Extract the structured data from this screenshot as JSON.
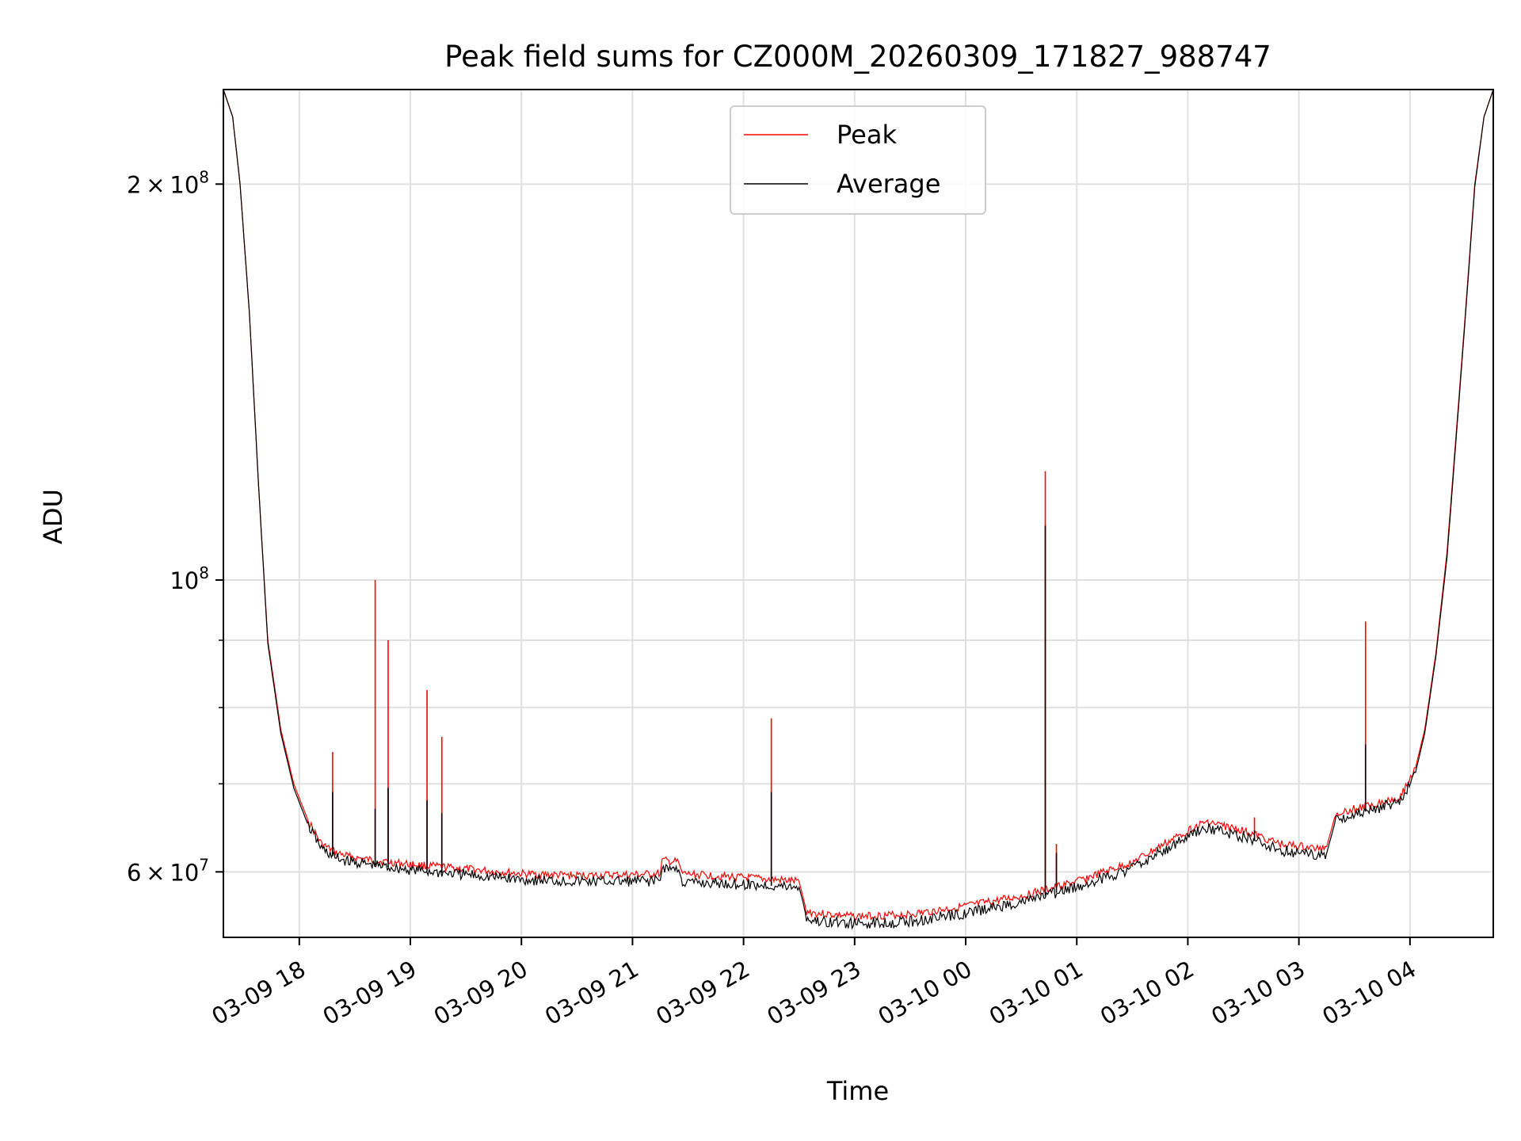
{
  "chart_data": {
    "type": "line",
    "title": "Peak field sums for CZ000M_20260309_171827_988747",
    "xlabel": "Time",
    "ylabel": "ADU",
    "yscale": "log",
    "ylim": [
      53500000,
      236000000
    ],
    "xlim": [
      "2026-03-09 17:19",
      "2026-03-10 04:45"
    ],
    "grid": true,
    "legend_position": "upper center",
    "x_ticks": [
      "2026-03-09 18:00",
      "2026-03-09 19:00",
      "2026-03-09 20:00",
      "2026-03-09 21:00",
      "2026-03-09 22:00",
      "2026-03-09 23:00",
      "2026-03-10 00:00",
      "2026-03-10 01:00",
      "2026-03-10 02:00",
      "2026-03-10 03:00",
      "2026-03-10 04:00"
    ],
    "x_tick_labels": [
      "03-09 18",
      "03-09 19",
      "03-09 20",
      "03-09 21",
      "03-09 22",
      "03-09 23",
      "03-10 00",
      "03-10 01",
      "03-10 02",
      "03-10 03",
      "03-10 04"
    ],
    "y_major_ticks": [
      60000000,
      100000000,
      200000000
    ],
    "y_minor_ticks": [
      70000000,
      80000000,
      90000000
    ],
    "y_tick_labels": [
      {
        "mantissa": "6",
        "exponent": "7"
      },
      {
        "mantissa": "",
        "exponent": "8"
      },
      {
        "mantissa": "2",
        "exponent": "8"
      }
    ],
    "series": [
      {
        "name": "Peak",
        "color": "#ff0000",
        "points": [
          [
            "2026-03-09 17:19",
            236000000
          ],
          [
            "2026-03-09 17:24",
            225000000
          ],
          [
            "2026-03-09 17:28",
            200000000
          ],
          [
            "2026-03-09 17:33",
            160000000
          ],
          [
            "2026-03-09 17:38",
            118000000
          ],
          [
            "2026-03-09 17:43",
            90000000
          ],
          [
            "2026-03-09 17:50",
            77000000
          ],
          [
            "2026-03-09 17:57",
            70000000
          ],
          [
            "2026-03-09 18:05",
            65500000
          ],
          [
            "2026-03-09 18:12",
            63000000
          ],
          [
            "2026-03-09 18:20",
            62000000
          ],
          [
            "2026-03-09 18:30",
            61500000
          ],
          [
            "2026-03-09 18:40",
            61200000
          ],
          [
            "2026-03-09 19:00",
            60800000
          ],
          [
            "2026-03-09 19:30",
            60300000
          ],
          [
            "2026-03-09 20:00",
            59800000
          ],
          [
            "2026-03-09 20:30",
            59600000
          ],
          [
            "2026-03-09 21:00",
            59700000
          ],
          [
            "2026-03-09 21:15",
            59800000
          ],
          [
            "2026-03-09 21:16",
            61200000
          ],
          [
            "2026-03-09 21:25",
            61000000
          ],
          [
            "2026-03-09 21:27",
            59800000
          ],
          [
            "2026-03-09 22:00",
            59400000
          ],
          [
            "2026-03-09 22:30",
            59000000
          ],
          [
            "2026-03-09 22:32",
            57500000
          ],
          [
            "2026-03-09 22:34",
            56000000
          ],
          [
            "2026-03-09 22:40",
            55800000
          ],
          [
            "2026-03-09 23:00",
            55500000
          ],
          [
            "2026-03-09 23:30",
            55700000
          ],
          [
            "2026-03-10 00:00",
            56500000
          ],
          [
            "2026-03-10 00:30",
            57500000
          ],
          [
            "2026-03-10 01:00",
            59000000
          ],
          [
            "2026-03-10 01:30",
            61000000
          ],
          [
            "2026-03-10 02:00",
            64500000
          ],
          [
            "2026-03-10 02:10",
            65500000
          ],
          [
            "2026-03-10 02:30",
            64500000
          ],
          [
            "2026-03-10 02:50",
            63000000
          ],
          [
            "2026-03-10 03:10",
            62500000
          ],
          [
            "2026-03-10 03:15",
            62700000
          ],
          [
            "2026-03-10 03:20",
            66500000
          ],
          [
            "2026-03-10 03:40",
            67500000
          ],
          [
            "2026-03-10 03:55",
            68500000
          ],
          [
            "2026-03-10 04:03",
            72000000
          ],
          [
            "2026-03-10 04:08",
            77000000
          ],
          [
            "2026-03-10 04:14",
            88000000
          ],
          [
            "2026-03-10 04:20",
            105000000
          ],
          [
            "2026-03-10 04:26",
            135000000
          ],
          [
            "2026-03-10 04:30",
            160000000
          ],
          [
            "2026-03-10 04:35",
            200000000
          ],
          [
            "2026-03-10 04:40",
            225000000
          ],
          [
            "2026-03-10 04:45",
            236000000
          ]
        ],
        "spikes": [
          [
            "2026-03-09 18:18",
            74000000
          ],
          [
            "2026-03-09 18:41",
            100000000
          ],
          [
            "2026-03-09 18:48",
            90000000
          ],
          [
            "2026-03-09 19:09",
            82500000
          ],
          [
            "2026-03-09 19:17",
            76000000
          ],
          [
            "2026-03-09 22:15",
            78500000
          ],
          [
            "2026-03-10 00:43",
            121000000
          ],
          [
            "2026-03-10 00:49",
            63000000
          ],
          [
            "2026-03-10 02:36",
            66000000
          ],
          [
            "2026-03-10 03:36",
            93000000
          ]
        ]
      },
      {
        "name": "Average",
        "color": "#000000",
        "points": [
          [
            "2026-03-09 17:19",
            236000000
          ],
          [
            "2026-03-09 17:24",
            225000000
          ],
          [
            "2026-03-09 17:28",
            200000000
          ],
          [
            "2026-03-09 17:33",
            160000000
          ],
          [
            "2026-03-09 17:38",
            118000000
          ],
          [
            "2026-03-09 17:43",
            89500000
          ],
          [
            "2026-03-09 17:50",
            76500000
          ],
          [
            "2026-03-09 17:57",
            69500000
          ],
          [
            "2026-03-09 18:05",
            65000000
          ],
          [
            "2026-03-09 18:12",
            62500000
          ],
          [
            "2026-03-09 18:20",
            61400000
          ],
          [
            "2026-03-09 18:30",
            61000000
          ],
          [
            "2026-03-09 18:40",
            60700000
          ],
          [
            "2026-03-09 19:00",
            60200000
          ],
          [
            "2026-03-09 19:30",
            59700000
          ],
          [
            "2026-03-09 20:00",
            59200000
          ],
          [
            "2026-03-09 20:30",
            59000000
          ],
          [
            "2026-03-09 21:00",
            59000000
          ],
          [
            "2026-03-09 21:15",
            59100000
          ],
          [
            "2026-03-09 21:16",
            60500000
          ],
          [
            "2026-03-09 21:25",
            60200000
          ],
          [
            "2026-03-09 21:27",
            58900000
          ],
          [
            "2026-03-09 22:00",
            58700000
          ],
          [
            "2026-03-09 22:30",
            58400000
          ],
          [
            "2026-03-09 22:32",
            57000000
          ],
          [
            "2026-03-09 22:34",
            55300000
          ],
          [
            "2026-03-09 22:40",
            55000000
          ],
          [
            "2026-03-09 23:00",
            54800000
          ],
          [
            "2026-03-09 23:30",
            55000000
          ],
          [
            "2026-03-10 00:00",
            55800000
          ],
          [
            "2026-03-10 00:30",
            56900000
          ],
          [
            "2026-03-10 01:00",
            58400000
          ],
          [
            "2026-03-10 01:30",
            60400000
          ],
          [
            "2026-03-10 02:00",
            63800000
          ],
          [
            "2026-03-10 02:10",
            64800000
          ],
          [
            "2026-03-10 02:30",
            63800000
          ],
          [
            "2026-03-10 02:50",
            62300000
          ],
          [
            "2026-03-10 03:10",
            61800000
          ],
          [
            "2026-03-10 03:15",
            62000000
          ],
          [
            "2026-03-10 03:20",
            65800000
          ],
          [
            "2026-03-10 03:40",
            66900000
          ],
          [
            "2026-03-10 03:55",
            67900000
          ],
          [
            "2026-03-10 04:03",
            71400000
          ],
          [
            "2026-03-10 04:08",
            76500000
          ],
          [
            "2026-03-10 04:14",
            87500000
          ],
          [
            "2026-03-10 04:20",
            104000000
          ],
          [
            "2026-03-10 04:26",
            134000000
          ],
          [
            "2026-03-10 04:30",
            159000000
          ],
          [
            "2026-03-10 04:35",
            199000000
          ],
          [
            "2026-03-10 04:40",
            225000000
          ],
          [
            "2026-03-10 04:45",
            236000000
          ]
        ],
        "spikes": [
          [
            "2026-03-09 18:18",
            69000000
          ],
          [
            "2026-03-09 18:41",
            67000000
          ],
          [
            "2026-03-09 18:48",
            69500000
          ],
          [
            "2026-03-09 19:09",
            68000000
          ],
          [
            "2026-03-09 19:17",
            66500000
          ],
          [
            "2026-03-09 22:15",
            69000000
          ],
          [
            "2026-03-10 00:43",
            110000000
          ],
          [
            "2026-03-10 00:49",
            62000000
          ],
          [
            "2026-03-10 02:36",
            64500000
          ],
          [
            "2026-03-10 03:36",
            75000000
          ]
        ]
      }
    ]
  }
}
